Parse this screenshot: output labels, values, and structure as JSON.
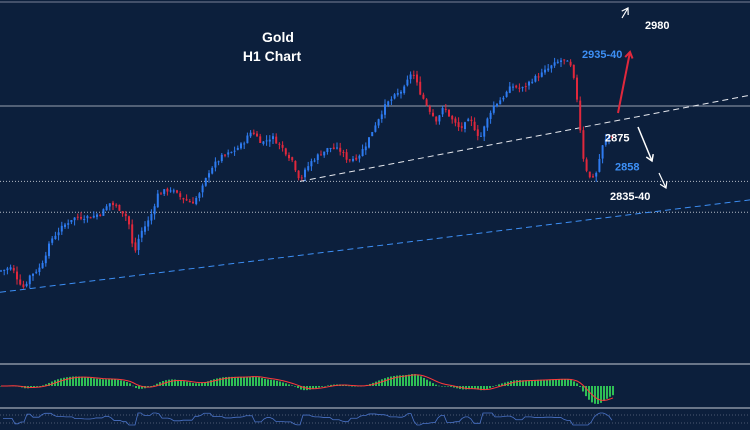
{
  "chart_data": {
    "type": "candlestick",
    "title": "Gold",
    "subtitle": "H1  Chart",
    "colors": {
      "background": "#0c1f3c",
      "bull": "#2e7bf0",
      "bear": "#e0283c",
      "line_levels": "#c8ccd6",
      "blue_text": "#3d8ff5",
      "white_text": "#ffffff",
      "arrow_up": "#e0283c",
      "histogram": "#2fbf55",
      "signal": "#ff3b3b",
      "osc": "#4a73c8"
    },
    "price_range": [
      2800,
      3000
    ],
    "close_path": [
      [
        0,
        2832
      ],
      [
        12,
        2834
      ],
      [
        18,
        2826
      ],
      [
        24,
        2821
      ],
      [
        30,
        2829
      ],
      [
        40,
        2834
      ],
      [
        52,
        2853
      ],
      [
        62,
        2860
      ],
      [
        72,
        2866
      ],
      [
        82,
        2867
      ],
      [
        92,
        2867
      ],
      [
        102,
        2870
      ],
      [
        110,
        2876
      ],
      [
        120,
        2872
      ],
      [
        128,
        2866
      ],
      [
        134,
        2842
      ],
      [
        140,
        2856
      ],
      [
        150,
        2866
      ],
      [
        158,
        2882
      ],
      [
        170,
        2885
      ],
      [
        180,
        2880
      ],
      [
        192,
        2876
      ],
      [
        200,
        2882
      ],
      [
        210,
        2898
      ],
      [
        222,
        2906
      ],
      [
        232,
        2909
      ],
      [
        242,
        2914
      ],
      [
        252,
        2923
      ],
      [
        262,
        2915
      ],
      [
        272,
        2919
      ],
      [
        282,
        2912
      ],
      [
        292,
        2904
      ],
      [
        300,
        2891
      ],
      [
        310,
        2902
      ],
      [
        320,
        2908
      ],
      [
        330,
        2912
      ],
      [
        340,
        2910
      ],
      [
        348,
        2904
      ],
      [
        358,
        2906
      ],
      [
        366,
        2914
      ],
      [
        376,
        2928
      ],
      [
        386,
        2940
      ],
      [
        396,
        2946
      ],
      [
        404,
        2950
      ],
      [
        412,
        2962
      ],
      [
        420,
        2948
      ],
      [
        428,
        2938
      ],
      [
        436,
        2930
      ],
      [
        444,
        2938
      ],
      [
        452,
        2930
      ],
      [
        460,
        2924
      ],
      [
        470,
        2930
      ],
      [
        480,
        2918
      ],
      [
        486,
        2928
      ],
      [
        492,
        2938
      ],
      [
        502,
        2944
      ],
      [
        512,
        2952
      ],
      [
        522,
        2950
      ],
      [
        532,
        2956
      ],
      [
        542,
        2960
      ],
      [
        552,
        2965
      ],
      [
        562,
        2969
      ],
      [
        570,
        2966
      ],
      [
        576,
        2950
      ],
      [
        580,
        2925
      ],
      [
        584,
        2902
      ],
      [
        590,
        2892
      ],
      [
        596,
        2895
      ],
      [
        602,
        2912
      ],
      [
        608,
        2920
      ],
      [
        614,
        2918
      ]
    ],
    "support_line": [
      [
        300,
        2890
      ],
      [
        750,
        2946
      ]
    ],
    "trend_line": [
      [
        0,
        2818
      ],
      [
        750,
        2878
      ]
    ],
    "horizontal_levels": [
      2939,
      2890,
      2870
    ],
    "labels": [
      {
        "text": "2980",
        "x": 645,
        "price": 2989,
        "color": "white"
      },
      {
        "text": "2935-40",
        "x": 582,
        "price": 2970,
        "color": "blue"
      },
      {
        "text": "2875",
        "x": 605,
        "price": 2916,
        "color": "white"
      },
      {
        "text": "2858",
        "x": 615,
        "price": 2897,
        "color": "blue"
      },
      {
        "text": "2835-40",
        "x": 610,
        "price": 2878,
        "color": "white"
      }
    ]
  }
}
